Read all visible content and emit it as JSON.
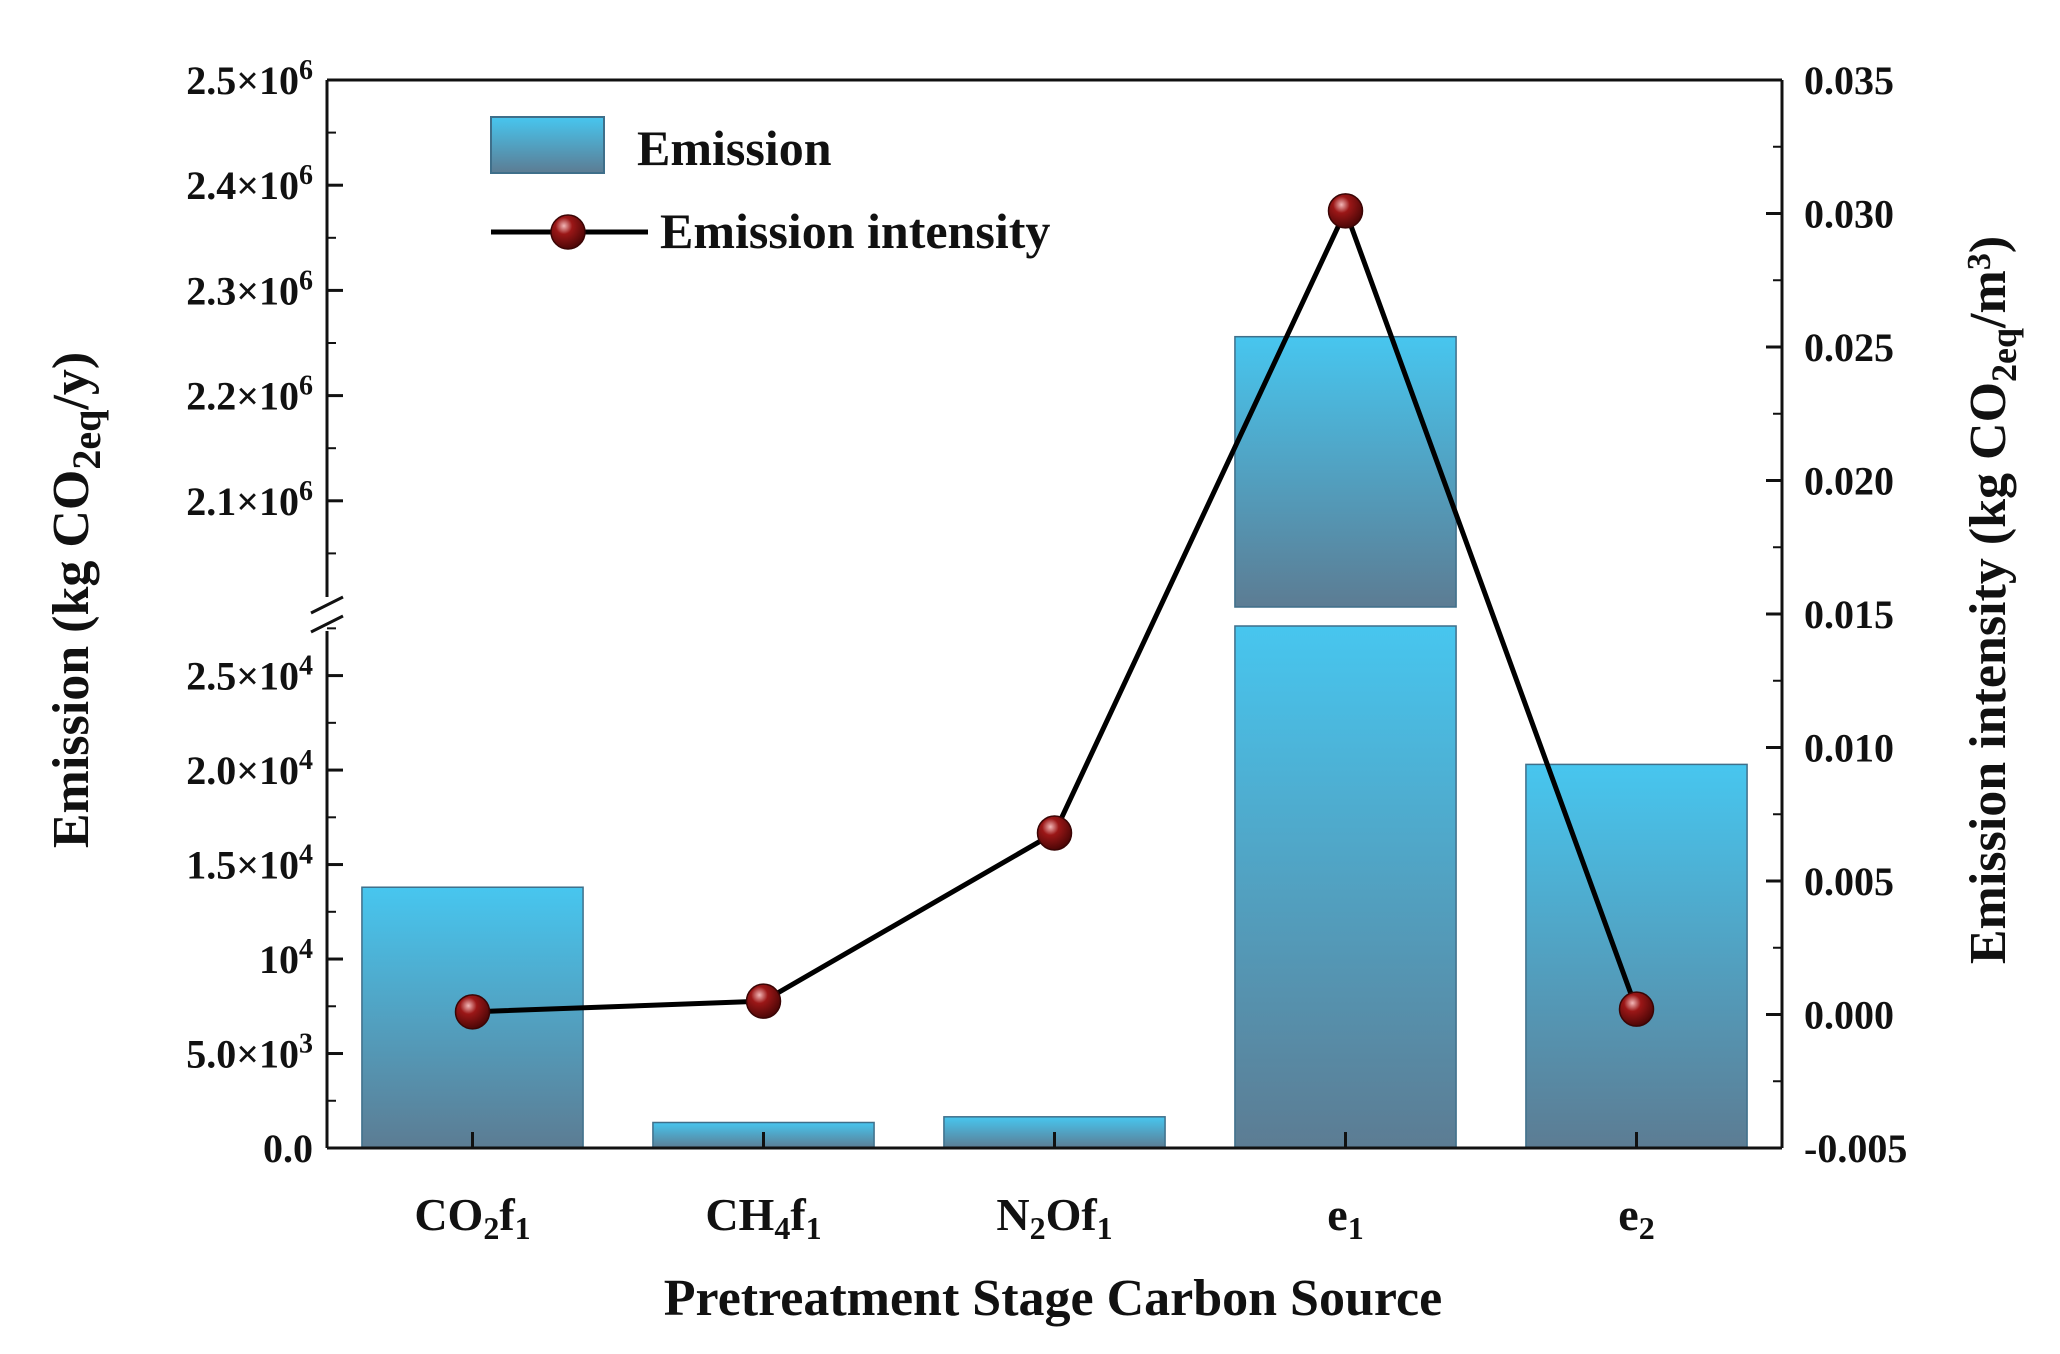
{
  "chart_data": {
    "type": "bar",
    "categories": [
      {
        "base": "CO",
        "sub1": "2",
        "mid": "f",
        "sub2": "1"
      },
      {
        "base": "CH",
        "sub1": "4",
        "mid": "f",
        "sub2": "1"
      },
      {
        "base": "N",
        "sub1": "2",
        "mid": "Of",
        "sub2": "1"
      },
      {
        "base": "e",
        "sub1": "1",
        "mid": "",
        "sub2": ""
      },
      {
        "base": "e",
        "sub1": "2",
        "mid": "",
        "sub2": ""
      }
    ],
    "series": [
      {
        "name": "Emission",
        "kind": "bar",
        "axis": "left",
        "values": [
          13800,
          1350,
          1650,
          2256000,
          20300
        ]
      },
      {
        "name": "Emission intensity",
        "kind": "line",
        "axis": "right",
        "values": [
          0.0001,
          0.0005,
          0.0068,
          0.0301,
          0.0002
        ]
      }
    ],
    "xlabel": "Pretreatment Stage Carbon Source",
    "ylabel": {
      "prefix": "Emission (kg CO",
      "sub": "2eq",
      "suffix": "/y)"
    },
    "y2label": {
      "prefix": "Emission intensity (kg CO",
      "sub": "2eq",
      "mid": "/m",
      "sup": "3",
      "suffix": ")"
    },
    "y_axis_break": {
      "lower_range": [
        0,
        29000
      ],
      "upper_range": [
        2000000,
        2500000
      ]
    },
    "y_ticks_lower": [
      {
        "value": 0,
        "mantissa": "0.0",
        "exp": ""
      },
      {
        "value": 5000,
        "mantissa": "5.0×10",
        "exp": "3"
      },
      {
        "value": 10000,
        "mantissa": "10",
        "exp": "4"
      },
      {
        "value": 15000,
        "mantissa": "1.5×10",
        "exp": "4"
      },
      {
        "value": 20000,
        "mantissa": "2.0×10",
        "exp": "4"
      },
      {
        "value": 25000,
        "mantissa": "2.5×10",
        "exp": "4"
      }
    ],
    "y_ticks_upper": [
      {
        "value": 2100000,
        "mantissa": "2.1×10",
        "exp": "6"
      },
      {
        "value": 2200000,
        "mantissa": "2.2×10",
        "exp": "6"
      },
      {
        "value": 2300000,
        "mantissa": "2.3×10",
        "exp": "6"
      },
      {
        "value": 2400000,
        "mantissa": "2.4×10",
        "exp": "6"
      },
      {
        "value": 2500000,
        "mantissa": "2.5×10",
        "exp": "6"
      }
    ],
    "y2_ticks": [
      "-0.005",
      "0.000",
      "0.005",
      "0.010",
      "0.015",
      "0.020",
      "0.025",
      "0.030",
      "0.035"
    ],
    "y2lim": [
      -0.005,
      0.035
    ],
    "legend": {
      "position": "top-left",
      "entries": [
        "Emission",
        "Emission intensity"
      ]
    },
    "colors": {
      "bar_top": "#47c6ef",
      "bar_bottom": "#5c7c93",
      "bar_edge": "#3f6f8a",
      "line": "#000000",
      "marker": "#9b1717",
      "marker_highlight": "#f2b7b7"
    }
  }
}
